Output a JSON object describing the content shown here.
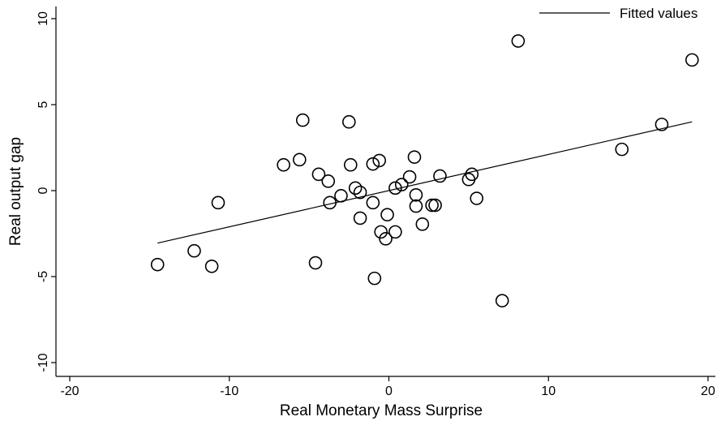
{
  "chart_data": {
    "type": "scatter",
    "title": "",
    "xlabel": "Real Monetary Mass Surprise",
    "ylabel": "Real output gap",
    "xlim": [
      -20,
      20
    ],
    "ylim": [
      -10,
      10
    ],
    "x_ticks": [
      -20,
      -10,
      0,
      10,
      20
    ],
    "y_ticks": [
      -10,
      -5,
      0,
      5,
      10
    ],
    "x_tick_labels": [
      "-20",
      "-10",
      "0",
      "10",
      "20"
    ],
    "y_tick_labels": [
      "-10",
      "-5",
      "0",
      "5",
      "10"
    ],
    "grid": false,
    "legend": {
      "position": "top-right",
      "entries": [
        "Fitted values"
      ]
    },
    "series": [
      {
        "type": "scatter",
        "marker": "hollow-circle",
        "color": "#000000",
        "points": [
          [
            -14.5,
            -4.3
          ],
          [
            -12.2,
            -3.5
          ],
          [
            -11.1,
            -4.4
          ],
          [
            -10.7,
            -0.7
          ],
          [
            -6.6,
            1.5
          ],
          [
            -5.6,
            1.8
          ],
          [
            -5.4,
            4.1
          ],
          [
            -4.6,
            -4.2
          ],
          [
            -4.4,
            0.95
          ],
          [
            -3.8,
            0.55
          ],
          [
            -3.7,
            -0.7
          ],
          [
            -3.0,
            -0.3
          ],
          [
            -2.5,
            4.0
          ],
          [
            -2.4,
            1.5
          ],
          [
            -2.1,
            0.15
          ],
          [
            -1.8,
            -0.1
          ],
          [
            -1.8,
            -1.6
          ],
          [
            -1.0,
            1.55
          ],
          [
            -1.0,
            -0.7
          ],
          [
            -0.9,
            -5.1
          ],
          [
            -0.6,
            1.75
          ],
          [
            -0.5,
            -2.4
          ],
          [
            -0.2,
            -2.8
          ],
          [
            -0.1,
            -1.4
          ],
          [
            0.4,
            0.15
          ],
          [
            0.4,
            -2.4
          ],
          [
            0.8,
            0.35
          ],
          [
            1.3,
            0.8
          ],
          [
            1.6,
            1.95
          ],
          [
            1.7,
            -0.25
          ],
          [
            1.7,
            -0.9
          ],
          [
            2.1,
            -1.95
          ],
          [
            2.7,
            -0.85
          ],
          [
            2.9,
            -0.85
          ],
          [
            3.2,
            0.85
          ],
          [
            5.0,
            0.65
          ],
          [
            5.2,
            0.95
          ],
          [
            5.5,
            -0.45
          ],
          [
            7.1,
            -6.4
          ],
          [
            8.1,
            8.7
          ],
          [
            14.6,
            2.4
          ],
          [
            17.1,
            3.85
          ],
          [
            19.0,
            7.6
          ]
        ]
      },
      {
        "name": "Fitted values",
        "type": "line",
        "color": "#000000",
        "points": [
          [
            -14.5,
            -3.05
          ],
          [
            19.0,
            4.0
          ]
        ]
      }
    ]
  }
}
